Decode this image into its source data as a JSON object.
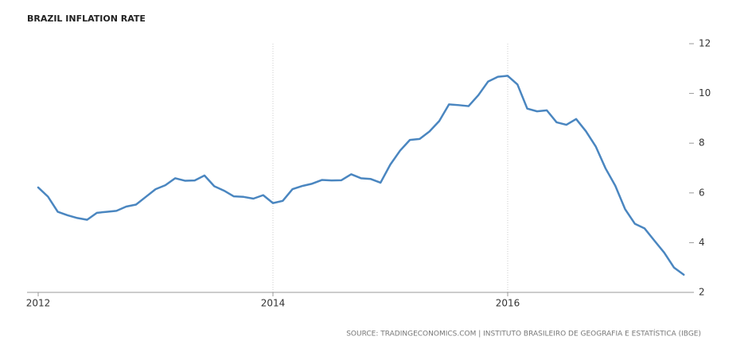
{
  "chart_data": {
    "type": "line",
    "title": "BRAZIL INFLATION RATE",
    "source": "SOURCE: TRADINGECONOMICS.COM | INSTITUTO BRASILEIRO DE GEOGRAFIA E ESTATÍSTICA (IBGE)",
    "categories": [
      "2012",
      null,
      null,
      null,
      null,
      null,
      null,
      null,
      null,
      null,
      null,
      null,
      null,
      null,
      null,
      null,
      null,
      null,
      null,
      null,
      null,
      null,
      null,
      null,
      "2014",
      null,
      null,
      null,
      null,
      null,
      null,
      null,
      null,
      null,
      null,
      null,
      null,
      null,
      null,
      null,
      null,
      null,
      null,
      null,
      null,
      null,
      null,
      null,
      "2016",
      null,
      null,
      null,
      null,
      null,
      null,
      null,
      null,
      null,
      null,
      null,
      null,
      null,
      null,
      null,
      null,
      null,
      null
    ],
    "values": [
      6.22,
      5.85,
      5.24,
      5.1,
      4.99,
      4.92,
      5.2,
      5.24,
      5.28,
      5.45,
      5.53,
      5.84,
      6.15,
      6.31,
      6.59,
      6.49,
      6.5,
      6.7,
      6.27,
      6.09,
      5.86,
      5.84,
      5.77,
      5.91,
      5.59,
      5.68,
      6.15,
      6.28,
      6.37,
      6.52,
      6.5,
      6.51,
      6.75,
      6.59,
      6.56,
      6.41,
      7.14,
      7.7,
      8.13,
      8.17,
      8.47,
      8.89,
      9.56,
      9.53,
      9.49,
      9.93,
      10.48,
      10.67,
      10.71,
      10.36,
      9.39,
      9.28,
      9.32,
      8.84,
      8.74,
      8.97,
      8.48,
      7.87,
      6.99,
      6.29,
      5.35,
      4.76,
      4.57,
      4.08,
      3.6,
      3.0,
      2.71
    ],
    "color": "#4a86c0",
    "ylim": [
      2,
      12
    ],
    "yticks": [
      2,
      4,
      6,
      8,
      10,
      12
    ],
    "y_axis_side": "right",
    "grid": true
  }
}
